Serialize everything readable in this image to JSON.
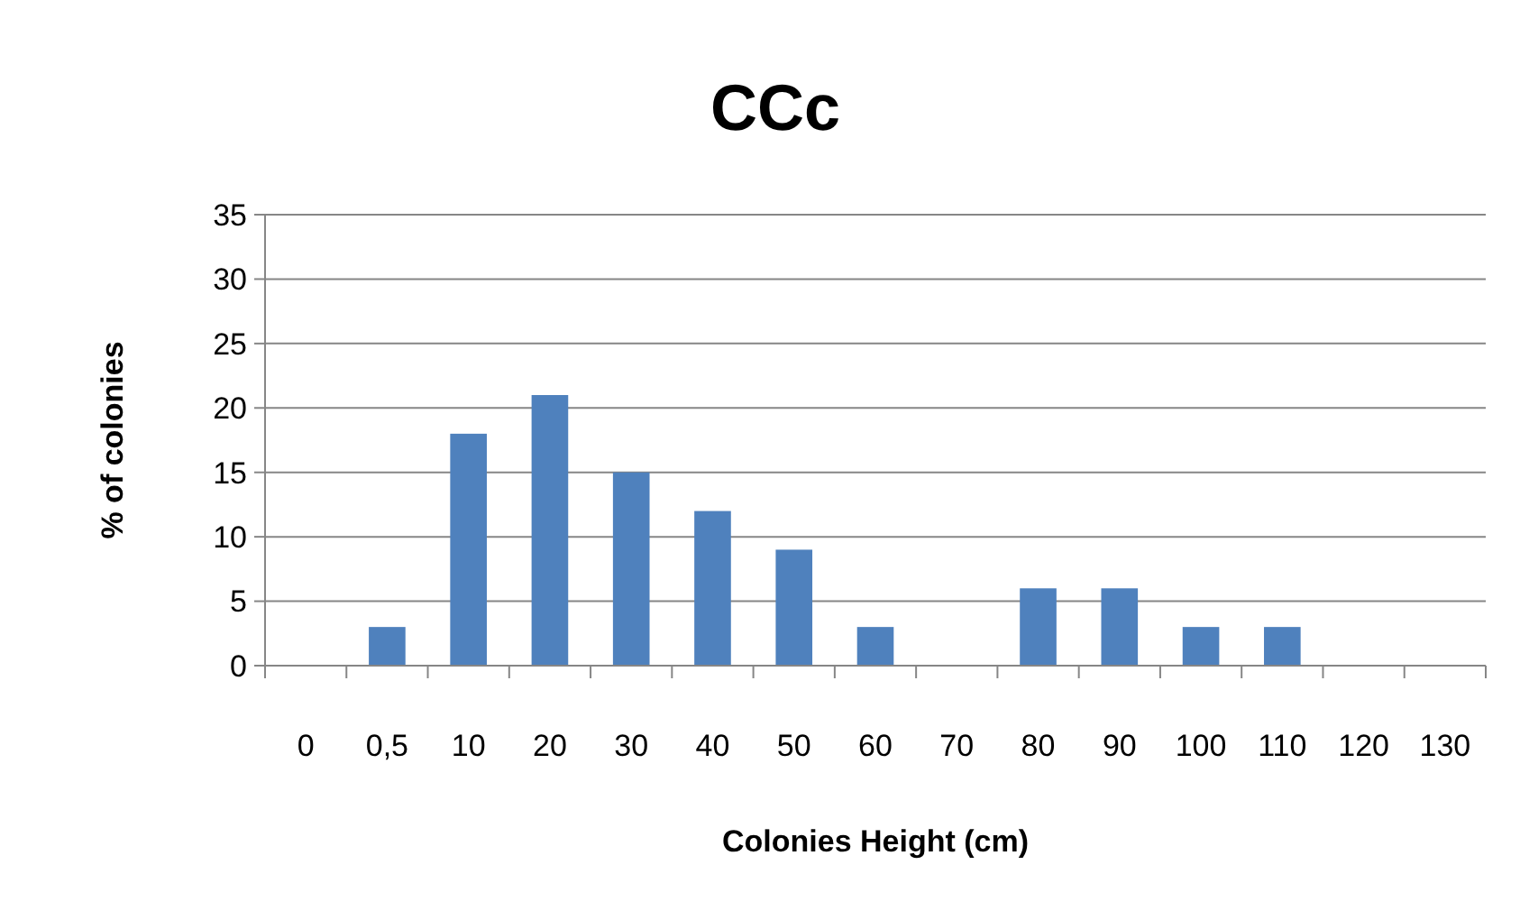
{
  "chart_data": {
    "type": "bar",
    "title": "CCc",
    "xlabel": "Colonies Height (cm)",
    "ylabel": "% of colonies",
    "categories": [
      "0",
      "0,5",
      "10",
      "20",
      "30",
      "40",
      "50",
      "60",
      "70",
      "80",
      "90",
      "100",
      "110",
      "120",
      "130"
    ],
    "values": [
      0,
      3,
      18,
      21,
      15,
      12,
      9,
      3,
      0,
      6,
      6,
      3,
      3,
      0,
      0
    ],
    "color": "#4f81bd",
    "ylim": [
      0,
      35
    ],
    "yticks": [
      0,
      5,
      10,
      15,
      20,
      25,
      30,
      35
    ],
    "grid": "y"
  }
}
